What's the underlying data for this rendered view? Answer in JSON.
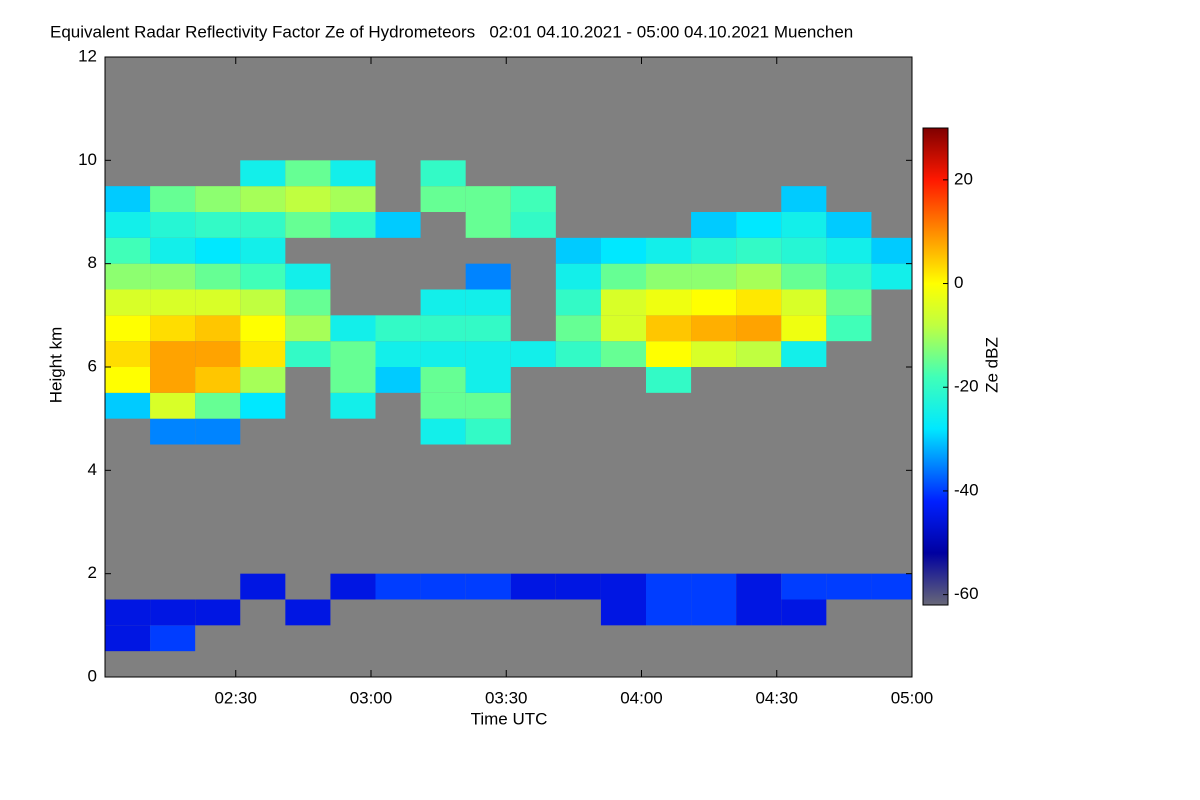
{
  "chart_data": {
    "type": "heatmap",
    "title": "Equivalent Radar Reflectivity Factor Ze of Hydrometeors   02:01 04.10.2021 - 05:00 04.10.2021 Muenchen",
    "x_label": "Time UTC",
    "y_label": "Height km",
    "colorbar_label": "Ze dBZ",
    "background": "#808080",
    "xlim": [
      121,
      300
    ],
    "xticks": [
      {
        "value": 150,
        "label": "02:30"
      },
      {
        "value": 180,
        "label": "03:00"
      },
      {
        "value": 210,
        "label": "03:30"
      },
      {
        "value": 240,
        "label": "04:00"
      },
      {
        "value": 270,
        "label": "04:30"
      },
      {
        "value": 300,
        "label": "05:00"
      }
    ],
    "ylim": [
      0,
      12
    ],
    "yticks": [
      0,
      2,
      4,
      6,
      8,
      10,
      12
    ],
    "zlim": [
      -62,
      30
    ],
    "zticks": [
      -60,
      -40,
      -20,
      0,
      20
    ],
    "colorscale": [
      [
        -62,
        "#686878"
      ],
      [
        -52,
        "#0000a0"
      ],
      [
        -42,
        "#0020ff"
      ],
      [
        -28,
        "#00e8ff"
      ],
      [
        -18,
        "#40ffb8"
      ],
      [
        -8,
        "#c0ff40"
      ],
      [
        0,
        "#ffff00"
      ],
      [
        10,
        "#ff8c00"
      ],
      [
        20,
        "#ff1800"
      ],
      [
        30,
        "#800000"
      ]
    ],
    "x": [
      126,
      136,
      146,
      156,
      166,
      176,
      186,
      196,
      206,
      216,
      226,
      236,
      246,
      256,
      266,
      276,
      286,
      296
    ],
    "y": [
      0.25,
      0.75,
      1.25,
      1.75,
      2.25,
      2.75,
      3.25,
      3.75,
      4.25,
      4.75,
      5.25,
      5.75,
      6.25,
      6.75,
      7.25,
      7.75,
      8.25,
      8.75,
      9.25,
      9.75
    ],
    "z": [
      [
        null,
        -45,
        -45,
        null,
        null,
        null,
        null,
        null,
        null,
        null,
        -30,
        0,
        3,
        0,
        -5,
        -12,
        -18,
        -25,
        -30,
        null
      ],
      [
        null,
        -40,
        -45,
        null,
        null,
        null,
        null,
        null,
        null,
        -35,
        -5,
        8,
        8,
        3,
        -5,
        -12,
        -25,
        -22,
        -15,
        null
      ],
      [
        null,
        null,
        -45,
        null,
        null,
        null,
        null,
        null,
        null,
        -35,
        -15,
        5,
        8,
        5,
        -5,
        -15,
        -28,
        -20,
        -12,
        null
      ],
      [
        null,
        null,
        null,
        -45,
        null,
        null,
        null,
        null,
        null,
        null,
        -28,
        -10,
        2,
        0,
        -8,
        -18,
        -25,
        -20,
        -10,
        -25
      ],
      [
        null,
        null,
        -45,
        null,
        null,
        null,
        null,
        null,
        null,
        null,
        null,
        null,
        -20,
        -10,
        -15,
        -25,
        null,
        -15,
        -8,
        -15
      ],
      [
        null,
        null,
        null,
        -45,
        null,
        null,
        null,
        null,
        null,
        null,
        -25,
        -15,
        -15,
        -25,
        null,
        null,
        null,
        -20,
        -10,
        -25
      ],
      [
        null,
        null,
        null,
        -40,
        null,
        null,
        null,
        null,
        null,
        null,
        null,
        -30,
        -25,
        -20,
        null,
        null,
        null,
        -30,
        null,
        null
      ],
      [
        null,
        null,
        null,
        -40,
        null,
        null,
        null,
        null,
        null,
        -25,
        -15,
        -15,
        -25,
        -20,
        -25,
        null,
        null,
        null,
        -15,
        -20
      ],
      [
        null,
        null,
        null,
        -40,
        null,
        null,
        null,
        null,
        null,
        -20,
        -15,
        -25,
        -25,
        -20,
        -25,
        -35,
        null,
        -15,
        -15,
        null
      ],
      [
        null,
        null,
        null,
        -45,
        null,
        null,
        null,
        null,
        null,
        null,
        null,
        null,
        -25,
        null,
        null,
        null,
        null,
        -20,
        -18,
        null
      ],
      [
        null,
        null,
        null,
        -45,
        null,
        null,
        null,
        null,
        null,
        null,
        null,
        null,
        -20,
        -15,
        -20,
        -25,
        -30,
        null,
        null,
        null
      ],
      [
        null,
        null,
        -45,
        -45,
        null,
        null,
        null,
        null,
        null,
        null,
        null,
        null,
        -15,
        -5,
        -5,
        -15,
        -28,
        null,
        null,
        null
      ],
      [
        null,
        null,
        -40,
        -40,
        null,
        null,
        null,
        null,
        null,
        null,
        null,
        -20,
        0,
        5,
        -2,
        -12,
        -25,
        null,
        null,
        null
      ],
      [
        null,
        null,
        -40,
        -40,
        null,
        null,
        null,
        null,
        null,
        null,
        null,
        null,
        -5,
        7,
        0,
        -12,
        -22,
        -30,
        null,
        null
      ],
      [
        null,
        null,
        -45,
        -45,
        null,
        null,
        null,
        null,
        null,
        null,
        null,
        null,
        -8,
        8,
        2,
        -10,
        -20,
        -28,
        null,
        null
      ],
      [
        null,
        null,
        -45,
        -40,
        null,
        null,
        null,
        null,
        null,
        null,
        null,
        null,
        -25,
        -2,
        -5,
        -15,
        -22,
        -25,
        -30,
        null
      ],
      [
        null,
        null,
        null,
        -40,
        null,
        null,
        null,
        null,
        null,
        null,
        null,
        null,
        null,
        -18,
        -15,
        -20,
        -25,
        -30,
        null,
        null
      ],
      [
        null,
        null,
        null,
        -40,
        null,
        null,
        null,
        null,
        null,
        null,
        null,
        null,
        null,
        null,
        null,
        -25,
        -30,
        null,
        null,
        null
      ]
    ]
  }
}
